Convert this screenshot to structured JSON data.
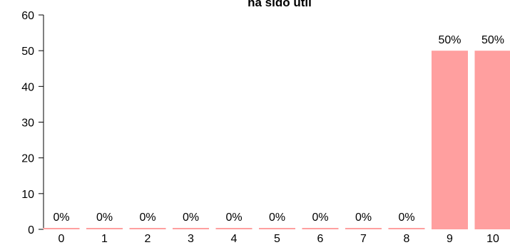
{
  "chart_data": {
    "type": "bar",
    "title": "ha sido útil",
    "xlabel": "",
    "ylabel": "",
    "categories": [
      "0",
      "1",
      "2",
      "3",
      "4",
      "5",
      "6",
      "7",
      "8",
      "9",
      "10"
    ],
    "values": [
      0,
      0,
      0,
      0,
      0,
      0,
      0,
      0,
      0,
      50,
      50
    ],
    "data_labels": [
      "0%",
      "0%",
      "0%",
      "0%",
      "0%",
      "0%",
      "0%",
      "0%",
      "0%",
      "50%",
      "50%"
    ],
    "ylim": [
      0,
      60
    ],
    "yticks": [
      0,
      10,
      20,
      30,
      40,
      50,
      60
    ],
    "bar_color": "#ff9f9f",
    "grid": false,
    "legend": "none"
  }
}
